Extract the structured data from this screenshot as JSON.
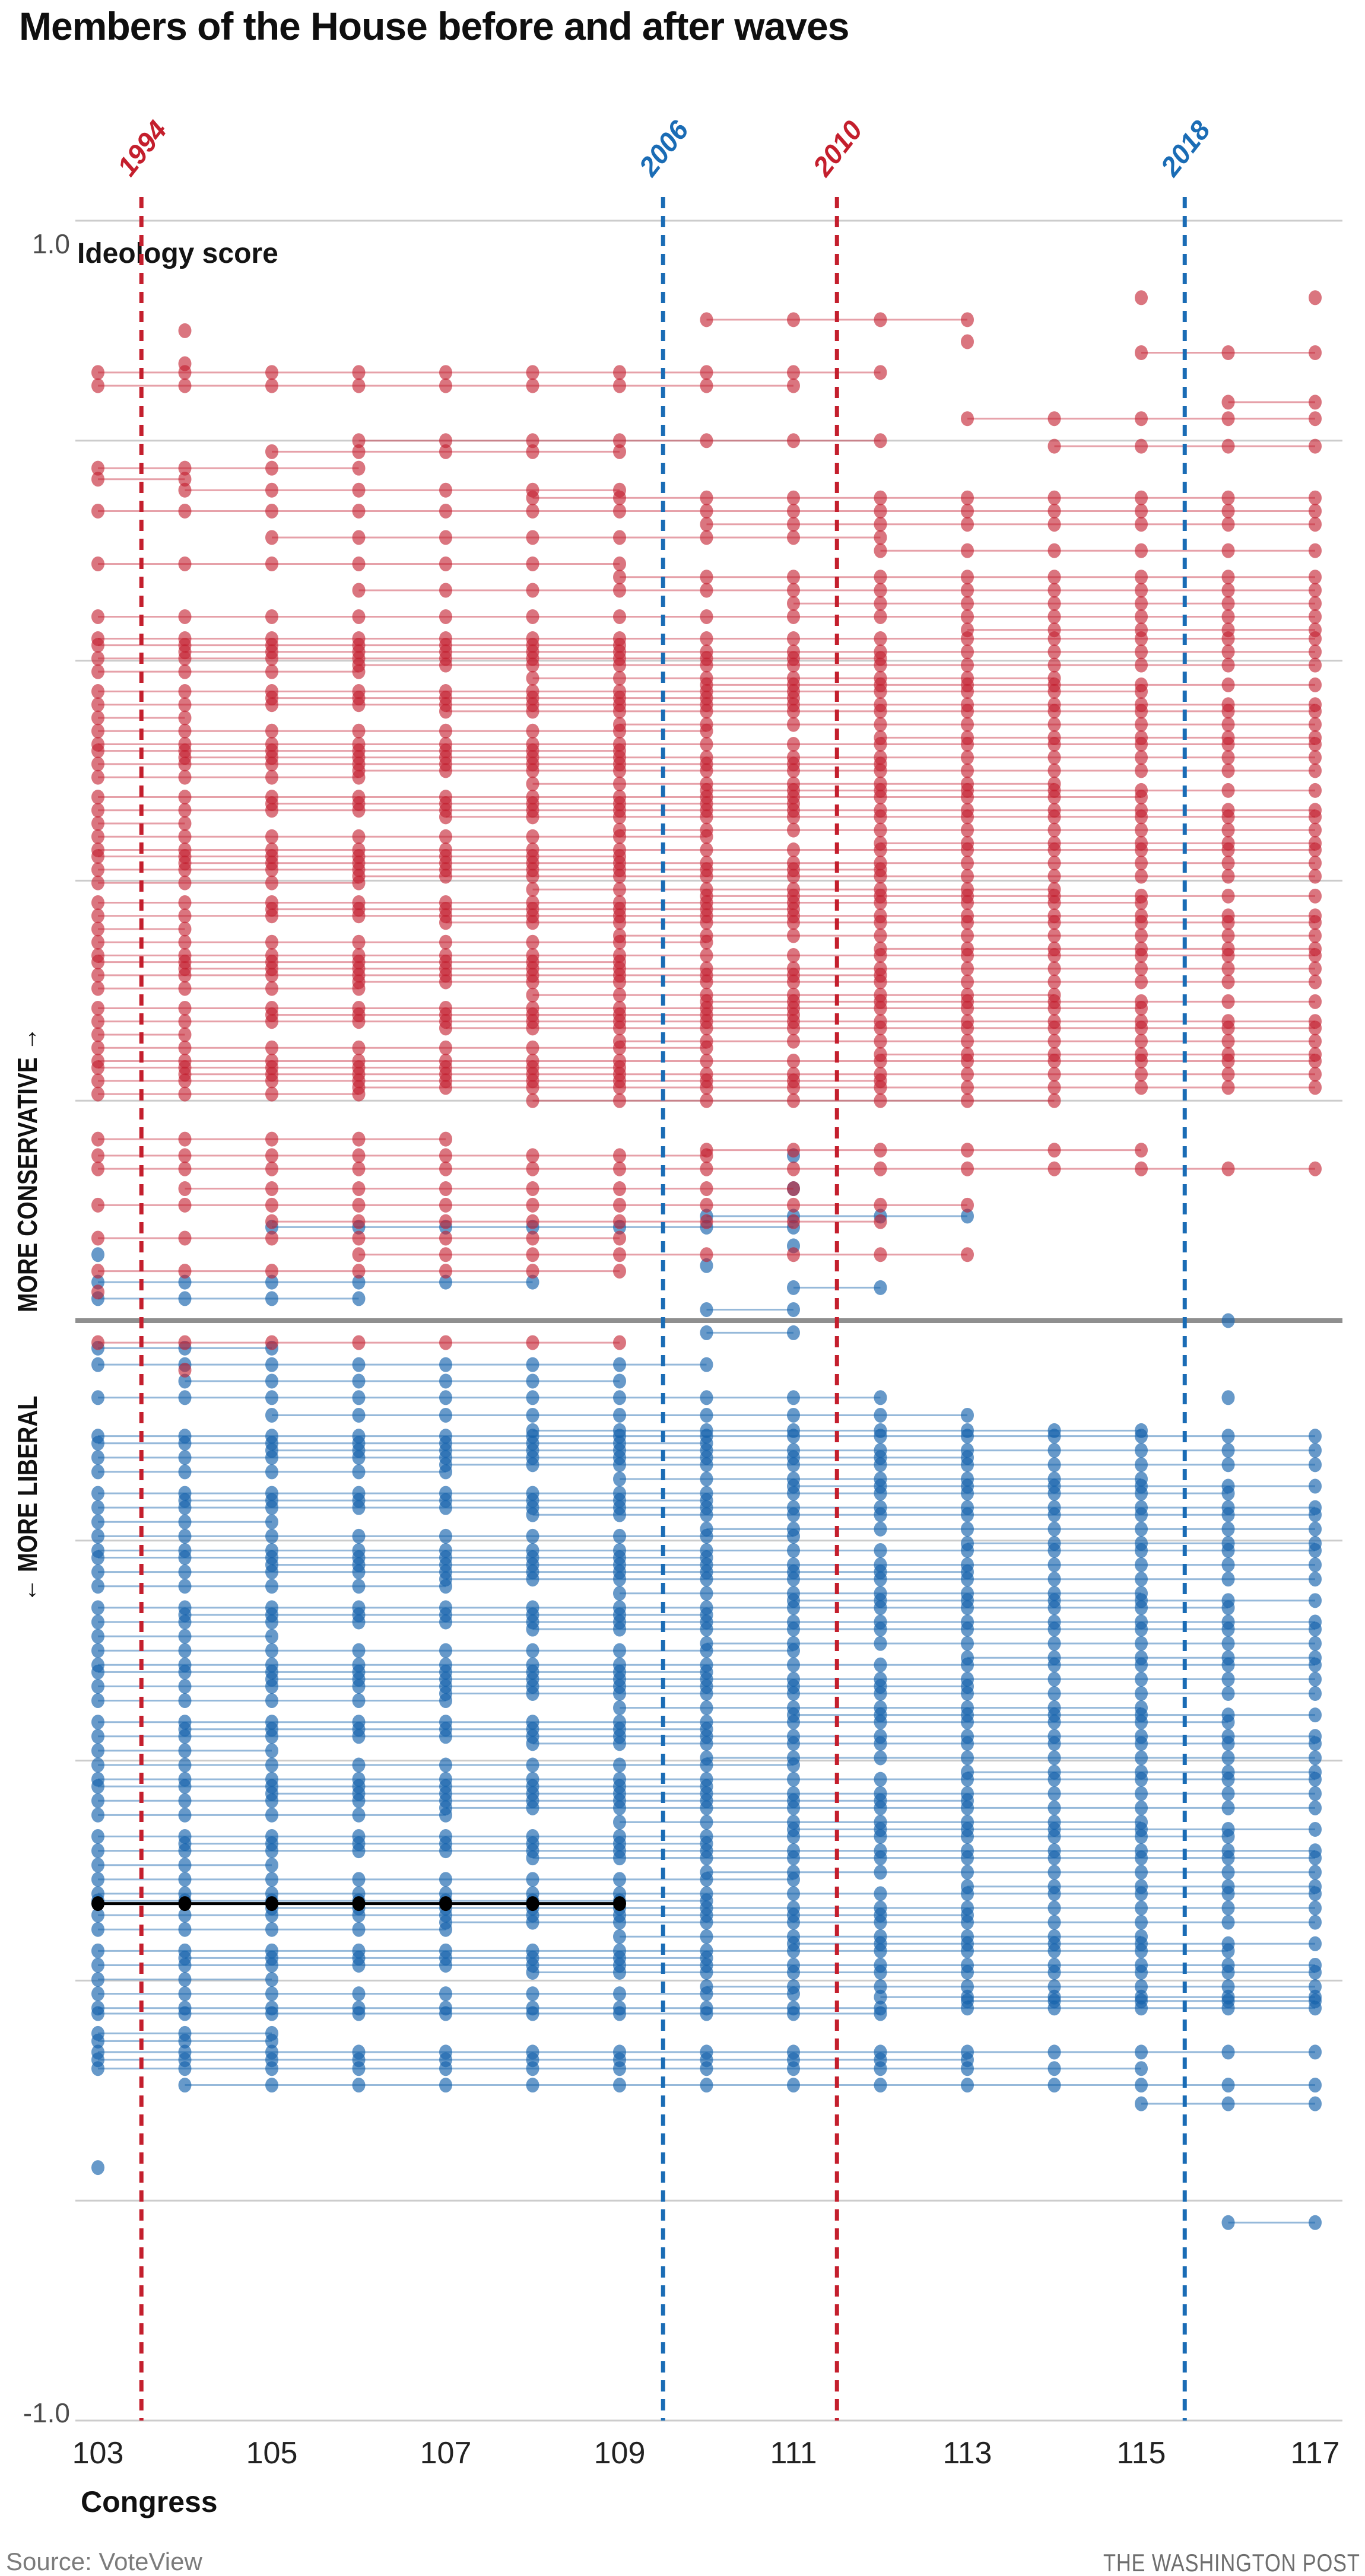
{
  "header": {
    "title": "Members of the House before and after waves"
  },
  "footer": {
    "source": "Source: VoteView",
    "credit": "THE WASHINGTON POST"
  },
  "side_labels": {
    "conservative": "MORE CONSERVATIVE →",
    "liberal": "← MORE LIBERAL"
  },
  "colors": {
    "republican": "#c32031",
    "democrat": "#1663ac",
    "black_member": "#000000",
    "gridline": "#cccccc",
    "midline": "#8f8f8f",
    "tick_text": "#222222",
    "axis_text_gray": "#4c4c4c"
  },
  "chart_data": {
    "type": "scatter",
    "title": "Members of the House before and after waves",
    "subtitle_axis_label": "Ideology score",
    "xlabel": "Congress",
    "x_range": [
      103,
      117
    ],
    "x_ticks": [
      103,
      105,
      107,
      109,
      111,
      113,
      115,
      117
    ],
    "y_range": [
      -1.0,
      1.0
    ],
    "y_top_label": "1.0",
    "y_bottom_label": "-1.0",
    "gridlines": [
      1.0,
      0.8,
      0.6,
      0.4,
      0.2,
      -0.2,
      -0.4,
      -0.6,
      -0.8,
      -1.0
    ],
    "midline": 0,
    "grid_on": true,
    "legend": "none",
    "wave_lines": [
      {
        "year": "1994",
        "congress": 103.5,
        "color": "#c41f2d"
      },
      {
        "year": "2006",
        "congress": 109.5,
        "color": "#1a6cb5"
      },
      {
        "year": "2010",
        "congress": 111.5,
        "color": "#c41f2d"
      },
      {
        "year": "2018",
        "congress": 115.5,
        "color": "#1a6cb5"
      }
    ],
    "parties": {
      "R": {
        "name": "Republican",
        "color": "#c32031",
        "dot_opacity": 0.62,
        "line_opacity": 0.42,
        "line_width": 3
      },
      "D": {
        "name": "Democrat",
        "color": "#1663ac",
        "dot_opacity": 0.65,
        "line_opacity": 0.45,
        "line_width": 3
      },
      "I": {
        "name": "Highlighted member",
        "color": "#000000",
        "dot_opacity": 1,
        "line_opacity": 1,
        "line_width": 5
      }
    },
    "members": {
      "note": "Each member is [party, ideology_score, first_congress, last_congress]; a dot is drawn at every congress served and a horizontal line connects them.",
      "explicit": [
        [
          "R",
          0.93,
          115,
          115
        ],
        [
          "R",
          0.93,
          117,
          117
        ],
        [
          "R",
          0.91,
          110,
          113
        ],
        [
          "R",
          0.89,
          113,
          113
        ],
        [
          "R",
          0.9,
          104,
          104
        ],
        [
          "R",
          0.87,
          104,
          104
        ],
        [
          "R",
          0.88,
          115,
          117
        ],
        [
          "R",
          0.862,
          103,
          112
        ],
        [
          "R",
          0.85,
          103,
          111
        ],
        [
          "R",
          0.835,
          116,
          117
        ],
        [
          "R",
          0.82,
          113,
          117
        ],
        [
          "R",
          0.8,
          106,
          112
        ],
        [
          "R",
          0.795,
          114,
          117
        ],
        [
          "R",
          0.79,
          105,
          109
        ],
        [
          "R",
          0.775,
          103,
          106
        ],
        [
          "R",
          0.765,
          103,
          104
        ],
        [
          "R",
          0.755,
          104,
          109
        ],
        [
          "R",
          0.165,
          103,
          107
        ],
        [
          "R",
          0.155,
          110,
          115
        ],
        [
          "R",
          0.15,
          103,
          110
        ],
        [
          "R",
          0.138,
          103,
          117
        ],
        [
          "R",
          0.12,
          104,
          111
        ],
        [
          "R",
          0.105,
          103,
          113
        ],
        [
          "R",
          0.09,
          105,
          112
        ],
        [
          "R",
          0.075,
          103,
          109
        ],
        [
          "R",
          0.06,
          106,
          113
        ],
        [
          "R",
          0.045,
          103,
          109
        ],
        [
          "R",
          0.026,
          103,
          103
        ],
        [
          "R",
          -0.02,
          103,
          109
        ],
        [
          "R",
          -0.045,
          104,
          104
        ],
        [
          "D",
          0.15,
          111,
          111
        ],
        [
          "D",
          0.12,
          111,
          111
        ],
        [
          "D",
          0.095,
          110,
          113
        ],
        [
          "D",
          0.085,
          105,
          111
        ],
        [
          "D",
          0.068,
          111,
          111
        ],
        [
          "D",
          0.06,
          103,
          103
        ],
        [
          "D",
          0.05,
          110,
          110
        ],
        [
          "D",
          0.035,
          103,
          108
        ],
        [
          "D",
          0.03,
          111,
          112
        ],
        [
          "D",
          0.02,
          103,
          106
        ],
        [
          "D",
          0.01,
          110,
          111
        ],
        [
          "D",
          0.0,
          116,
          116
        ],
        [
          "D",
          -0.011,
          110,
          111
        ],
        [
          "D",
          -0.025,
          103,
          105
        ],
        [
          "D",
          -0.04,
          103,
          110
        ],
        [
          "D",
          -0.055,
          104,
          109
        ],
        [
          "D",
          -0.07,
          103,
          112
        ],
        [
          "D",
          -0.07,
          116,
          116
        ],
        [
          "D",
          -0.086,
          105,
          113
        ],
        [
          "D",
          -0.1,
          108,
          115
        ],
        [
          "D",
          -0.615,
          112,
          117
        ],
        [
          "D",
          -0.63,
          103,
          112
        ],
        [
          "D",
          -0.648,
          103,
          105
        ],
        [
          "D",
          -0.655,
          103,
          105
        ],
        [
          "D",
          -0.665,
          103,
          117
        ],
        [
          "D",
          -0.672,
          103,
          113
        ],
        [
          "D",
          -0.68,
          103,
          115
        ],
        [
          "D",
          -0.695,
          104,
          117
        ],
        [
          "D",
          -0.712,
          115,
          117
        ],
        [
          "D",
          -0.77,
          103,
          103
        ],
        [
          "D",
          -0.82,
          116,
          117
        ],
        [
          "I",
          -0.53,
          103,
          109
        ]
      ],
      "bands": [
        {
          "party": "R",
          "top": 0.748,
          "step": 0.012,
          "count": 11,
          "spans": [
            [
              108,
              117
            ],
            [
              103,
              117
            ],
            [
              110,
              117
            ],
            [
              105,
              112
            ],
            [
              112,
              117
            ],
            [
              103,
              109
            ],
            [
              109,
              117
            ],
            [
              106,
              117
            ],
            [
              111,
              117
            ],
            [
              103,
              117
            ],
            [
              113,
              117
            ]
          ]
        },
        {
          "party": "R",
          "top": 0.62,
          "step": 0.006,
          "count": 71,
          "spans": [
            [
              103,
              117
            ],
            [
              103,
              109
            ],
            [
              104,
              117
            ],
            [
              103,
              112
            ],
            [
              106,
              117
            ],
            [
              103,
              106
            ],
            [
              108,
              114
            ],
            [
              110,
              117
            ],
            [
              103,
              115
            ],
            [
              105,
              111
            ],
            [
              103,
              117
            ],
            [
              107,
              117
            ],
            [
              103,
              104
            ],
            [
              109,
              117
            ],
            [
              103,
              110
            ],
            [
              112,
              117
            ]
          ]
        },
        {
          "party": "D",
          "top": -0.105,
          "step": 0.0065,
          "count": 81,
          "spans": [
            [
              103,
              117
            ],
            [
              103,
              110
            ],
            [
              105,
              117
            ],
            [
              103,
              113
            ],
            [
              107,
              117
            ],
            [
              103,
              107
            ],
            [
              109,
              115
            ],
            [
              111,
              117
            ],
            [
              103,
              116
            ],
            [
              104,
              110
            ],
            [
              103,
              117
            ],
            [
              108,
              117
            ],
            [
              103,
              105
            ],
            [
              110,
              117
            ],
            [
              103,
              111
            ],
            [
              113,
              117
            ]
          ]
        }
      ]
    }
  }
}
